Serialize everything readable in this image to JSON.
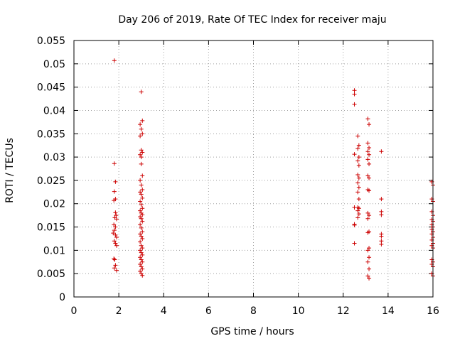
{
  "chart_data": {
    "type": "scatter",
    "title": "Day 206 of 2019, Rate Of TEC Index for receiver maju",
    "xlabel": "GPS time / hours",
    "ylabel": "ROTI / TECUs",
    "xlim": [
      0,
      16
    ],
    "ylim": [
      0,
      0.055
    ],
    "xticks": [
      0,
      2,
      4,
      6,
      8,
      10,
      12,
      14,
      16
    ],
    "xtick_labels": [
      "0",
      "2",
      "4",
      "6",
      "8",
      "10",
      "12",
      "14",
      "16"
    ],
    "yticks": [
      0,
      0.005,
      0.01,
      0.015,
      0.02,
      0.025,
      0.03,
      0.035,
      0.04,
      0.045,
      0.05,
      0.055
    ],
    "ytick_labels": [
      "0",
      "0.005",
      "0.01",
      "0.015",
      "0.02",
      "0.025",
      "0.03",
      "0.035",
      "0.04",
      "0.045",
      "0.05",
      "0.055"
    ],
    "grid": true,
    "marker": "+",
    "series": [
      {
        "name": "ROTI",
        "color": "#cc0000",
        "points": [
          [
            1.8,
            0.0507
          ],
          [
            1.8,
            0.0286
          ],
          [
            1.85,
            0.0247
          ],
          [
            1.8,
            0.0226
          ],
          [
            1.85,
            0.021
          ],
          [
            1.78,
            0.0207
          ],
          [
            1.85,
            0.0181
          ],
          [
            1.88,
            0.0175
          ],
          [
            1.82,
            0.017
          ],
          [
            1.9,
            0.0167
          ],
          [
            1.78,
            0.0155
          ],
          [
            1.85,
            0.015
          ],
          [
            1.8,
            0.0143
          ],
          [
            1.75,
            0.0137
          ],
          [
            1.85,
            0.0133
          ],
          [
            1.9,
            0.0128
          ],
          [
            1.8,
            0.012
          ],
          [
            1.85,
            0.0115
          ],
          [
            1.9,
            0.011
          ],
          [
            1.78,
            0.0082
          ],
          [
            1.82,
            0.008
          ],
          [
            1.85,
            0.0068
          ],
          [
            1.8,
            0.0062
          ],
          [
            1.9,
            0.0057
          ],
          [
            3.0,
            0.044
          ],
          [
            3.05,
            0.0378
          ],
          [
            2.95,
            0.037
          ],
          [
            3.0,
            0.036
          ],
          [
            3.05,
            0.035
          ],
          [
            2.95,
            0.0345
          ],
          [
            3.0,
            0.0315
          ],
          [
            3.05,
            0.031
          ],
          [
            2.95,
            0.0305
          ],
          [
            3.0,
            0.03
          ],
          [
            3.0,
            0.0285
          ],
          [
            3.05,
            0.026
          ],
          [
            2.95,
            0.025
          ],
          [
            3.0,
            0.024
          ],
          [
            3.05,
            0.023
          ],
          [
            2.95,
            0.0225
          ],
          [
            3.0,
            0.022
          ],
          [
            3.05,
            0.0212
          ],
          [
            2.95,
            0.0205
          ],
          [
            3.0,
            0.0198
          ],
          [
            3.05,
            0.019
          ],
          [
            2.95,
            0.0185
          ],
          [
            3.0,
            0.018
          ],
          [
            3.05,
            0.0176
          ],
          [
            2.95,
            0.0172
          ],
          [
            3.0,
            0.0168
          ],
          [
            3.05,
            0.0162
          ],
          [
            2.95,
            0.0155
          ],
          [
            3.0,
            0.0148
          ],
          [
            3.05,
            0.014
          ],
          [
            2.95,
            0.0135
          ],
          [
            3.0,
            0.013
          ],
          [
            3.05,
            0.0125
          ],
          [
            2.95,
            0.0118
          ],
          [
            3.0,
            0.011
          ],
          [
            3.05,
            0.0105
          ],
          [
            2.95,
            0.01
          ],
          [
            3.0,
            0.0095
          ],
          [
            3.05,
            0.009
          ],
          [
            2.95,
            0.0085
          ],
          [
            3.0,
            0.008
          ],
          [
            3.05,
            0.0075
          ],
          [
            2.95,
            0.007
          ],
          [
            3.0,
            0.0065
          ],
          [
            3.05,
            0.006
          ],
          [
            2.95,
            0.0055
          ],
          [
            3.0,
            0.005
          ],
          [
            3.05,
            0.0046
          ],
          [
            12.5,
            0.0443
          ],
          [
            12.5,
            0.0435
          ],
          [
            12.5,
            0.0413
          ],
          [
            12.5,
            0.0306
          ],
          [
            12.5,
            0.0192
          ],
          [
            12.5,
            0.0156
          ],
          [
            12.5,
            0.0154
          ],
          [
            12.5,
            0.0115
          ],
          [
            12.65,
            0.0345
          ],
          [
            12.7,
            0.0325
          ],
          [
            12.65,
            0.0318
          ],
          [
            12.7,
            0.03
          ],
          [
            12.65,
            0.0292
          ],
          [
            12.7,
            0.0282
          ],
          [
            12.65,
            0.0262
          ],
          [
            12.7,
            0.0255
          ],
          [
            12.65,
            0.0245
          ],
          [
            12.7,
            0.0235
          ],
          [
            12.65,
            0.0225
          ],
          [
            12.7,
            0.021
          ],
          [
            12.65,
            0.0192
          ],
          [
            12.7,
            0.019
          ],
          [
            12.65,
            0.0185
          ],
          [
            12.7,
            0.0178
          ],
          [
            12.65,
            0.017
          ],
          [
            13.1,
            0.0382
          ],
          [
            13.15,
            0.037
          ],
          [
            13.1,
            0.033
          ],
          [
            13.15,
            0.032
          ],
          [
            13.1,
            0.0312
          ],
          [
            13.15,
            0.0305
          ],
          [
            13.1,
            0.0295
          ],
          [
            13.15,
            0.0285
          ],
          [
            13.1,
            0.026
          ],
          [
            13.15,
            0.0255
          ],
          [
            13.1,
            0.023
          ],
          [
            13.15,
            0.0228
          ],
          [
            13.1,
            0.018
          ],
          [
            13.15,
            0.0175
          ],
          [
            13.1,
            0.0168
          ],
          [
            13.15,
            0.014
          ],
          [
            13.1,
            0.0138
          ],
          [
            13.15,
            0.0105
          ],
          [
            13.1,
            0.01
          ],
          [
            13.15,
            0.0085
          ],
          [
            13.1,
            0.0075
          ],
          [
            13.15,
            0.006
          ],
          [
            13.1,
            0.0045
          ],
          [
            13.15,
            0.004
          ],
          [
            13.7,
            0.0312
          ],
          [
            13.7,
            0.021
          ],
          [
            13.7,
            0.0183
          ],
          [
            13.7,
            0.0176
          ],
          [
            13.7,
            0.0135
          ],
          [
            13.7,
            0.013
          ],
          [
            13.7,
            0.012
          ],
          [
            13.7,
            0.0113
          ],
          [
            15.95,
            0.0247
          ],
          [
            16.0,
            0.024
          ],
          [
            15.95,
            0.021
          ],
          [
            16.0,
            0.0205
          ],
          [
            15.95,
            0.0183
          ],
          [
            16.0,
            0.0175
          ],
          [
            15.95,
            0.0166
          ],
          [
            16.0,
            0.0162
          ],
          [
            15.95,
            0.0155
          ],
          [
            16.0,
            0.015
          ],
          [
            15.95,
            0.0145
          ],
          [
            16.0,
            0.014
          ],
          [
            15.95,
            0.0135
          ],
          [
            16.0,
            0.0128
          ],
          [
            15.95,
            0.0122
          ],
          [
            16.0,
            0.0115
          ],
          [
            15.95,
            0.011
          ],
          [
            16.0,
            0.0105
          ],
          [
            15.95,
            0.008
          ],
          [
            16.0,
            0.0075
          ],
          [
            15.95,
            0.007
          ],
          [
            16.0,
            0.0065
          ],
          [
            15.95,
            0.005
          ],
          [
            16.0,
            0.0045
          ]
        ]
      }
    ]
  }
}
